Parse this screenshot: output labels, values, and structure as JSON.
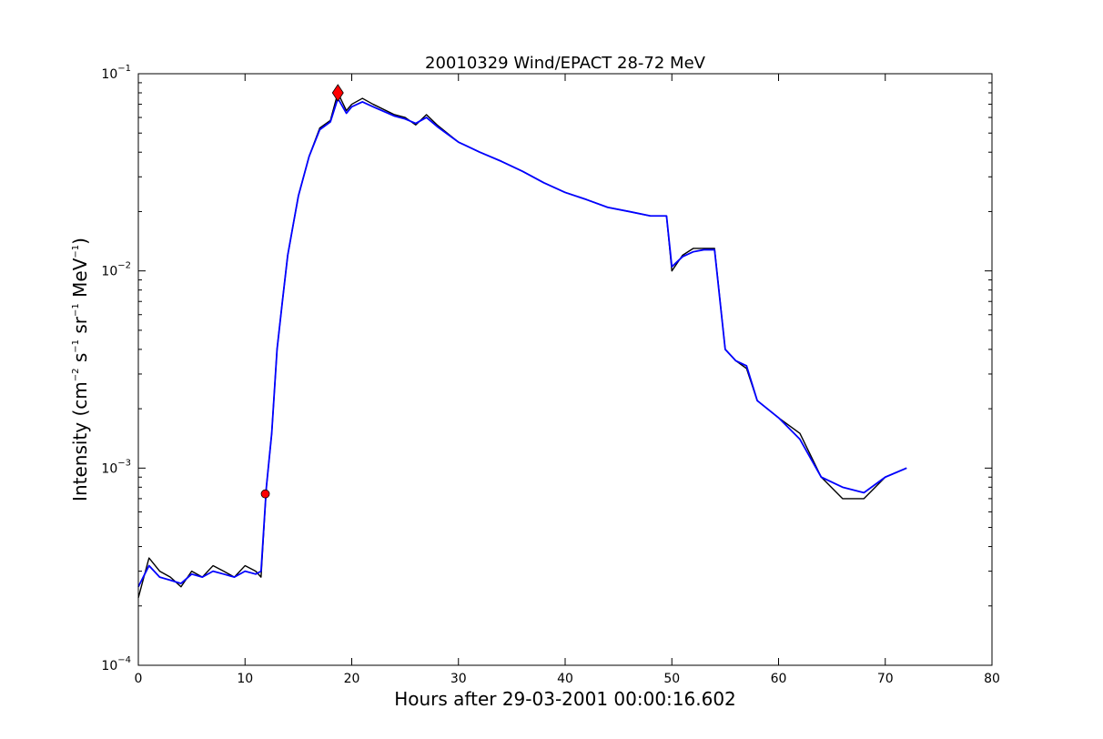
{
  "chart_data": {
    "type": "line",
    "title": "20010329 Wind/EPACT 28-72 MeV",
    "xlabel": "Hours after 29-03-2001 00:00:16.602",
    "ylabel": {
      "prefix": "Intensity (cm",
      "exp1": "−2",
      "s": " s",
      "exp2": "−1",
      "sr": " sr",
      "exp3": "−1",
      "mev": " MeV",
      "exp4": "−1",
      "suffix": ")"
    },
    "xlim": [
      0,
      80
    ],
    "ylim": [
      0.0001,
      0.1
    ],
    "yscale": "log",
    "grid": false,
    "x_ticks": [
      {
        "value": 0,
        "label": "0"
      },
      {
        "value": 10,
        "label": "10"
      },
      {
        "value": 20,
        "label": "20"
      },
      {
        "value": 30,
        "label": "30"
      },
      {
        "value": 40,
        "label": "40"
      },
      {
        "value": 50,
        "label": "50"
      },
      {
        "value": 60,
        "label": "60"
      },
      {
        "value": 70,
        "label": "70"
      },
      {
        "value": 80,
        "label": "80"
      }
    ],
    "y_ticks": [
      {
        "value": 0.0001,
        "base": "10",
        "exp": "−4"
      },
      {
        "value": 0.001,
        "base": "10",
        "exp": "−3"
      },
      {
        "value": 0.01,
        "base": "10",
        "exp": "−2"
      },
      {
        "value": 0.1,
        "base": "10",
        "exp": "−1"
      }
    ],
    "colors": {
      "raw": "#000000",
      "smoothed": "#0000ff",
      "marker": "#ff0000"
    },
    "series": [
      {
        "style": "raw",
        "x": [
          0,
          1,
          2,
          3,
          4,
          5,
          6,
          7,
          8,
          9,
          10,
          11,
          11.5,
          12,
          12.5,
          13,
          13.5,
          14,
          14.5,
          15,
          16,
          17,
          18,
          18.7,
          19.5,
          20,
          21,
          22,
          24,
          25,
          26,
          27,
          28,
          30,
          32,
          34,
          36,
          38,
          40,
          42,
          44,
          46,
          48,
          49.5,
          50,
          51,
          52,
          53,
          54,
          55,
          56,
          57,
          58,
          60,
          62,
          64,
          66,
          68,
          70,
          72
        ],
        "y": [
          0.00022,
          0.00035,
          0.0003,
          0.00028,
          0.00025,
          0.0003,
          0.00028,
          0.00032,
          0.0003,
          0.00028,
          0.00032,
          0.0003,
          0.00028,
          0.0008,
          0.0015,
          0.004,
          0.007,
          0.012,
          0.017,
          0.024,
          0.038,
          0.053,
          0.058,
          0.08,
          0.065,
          0.07,
          0.075,
          0.07,
          0.062,
          0.06,
          0.055,
          0.062,
          0.055,
          0.045,
          0.04,
          0.036,
          0.032,
          0.028,
          0.025,
          0.023,
          0.021,
          0.02,
          0.019,
          0.019,
          0.01,
          0.012,
          0.013,
          0.013,
          0.013,
          0.004,
          0.0035,
          0.0032,
          0.0022,
          0.0018,
          0.0015,
          0.0009,
          0.0007,
          0.0007,
          0.0009,
          0.001
        ]
      },
      {
        "style": "smoothed",
        "x": [
          0,
          1,
          2,
          3,
          4,
          5,
          6,
          7,
          8,
          9,
          10,
          11,
          11.5,
          12,
          12.5,
          13,
          13.5,
          14,
          14.5,
          15,
          16,
          17,
          18,
          18.7,
          19.5,
          20,
          21,
          22,
          24,
          25,
          26,
          27,
          28,
          30,
          32,
          34,
          36,
          38,
          40,
          42,
          44,
          46,
          48,
          49.5,
          50,
          51,
          52,
          53,
          54,
          55,
          56,
          57,
          58,
          60,
          62,
          64,
          66,
          68,
          70,
          72
        ],
        "y": [
          0.00025,
          0.00032,
          0.00028,
          0.00027,
          0.00026,
          0.00029,
          0.00028,
          0.0003,
          0.00029,
          0.00028,
          0.0003,
          0.00029,
          0.0003,
          0.0008,
          0.0015,
          0.004,
          0.007,
          0.012,
          0.017,
          0.024,
          0.038,
          0.052,
          0.057,
          0.075,
          0.063,
          0.068,
          0.072,
          0.068,
          0.061,
          0.059,
          0.056,
          0.06,
          0.054,
          0.045,
          0.04,
          0.036,
          0.032,
          0.028,
          0.025,
          0.023,
          0.021,
          0.02,
          0.019,
          0.019,
          0.0105,
          0.0118,
          0.0125,
          0.0128,
          0.0128,
          0.004,
          0.0035,
          0.0033,
          0.0022,
          0.0018,
          0.0014,
          0.0009,
          0.0008,
          0.00075,
          0.0009,
          0.001
        ]
      }
    ],
    "markers": [
      {
        "shape": "circle",
        "x": 11.9,
        "y": 0.00074
      },
      {
        "shape": "diamond",
        "x": 18.7,
        "y": 0.08
      }
    ]
  }
}
